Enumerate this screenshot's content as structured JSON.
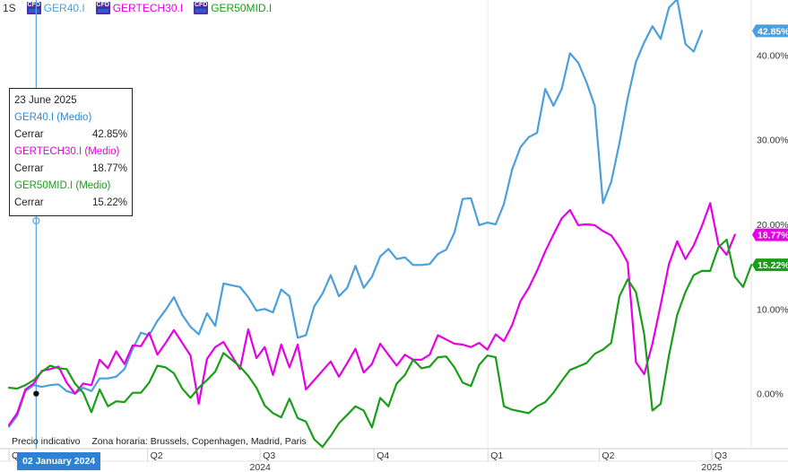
{
  "toolbar": {
    "period": "1S",
    "instruments": [
      {
        "label": "GER40.I",
        "color": "#4a9fdc",
        "icon": "cfd-icon"
      },
      {
        "label": "GERTECH30.I",
        "color": "#e600e6",
        "icon": "cfd-icon"
      },
      {
        "label": "GER50MID.I",
        "color": "#1a9e1a",
        "icon": "cfd-icon"
      }
    ]
  },
  "tooltip": {
    "date": "23 June 2025",
    "entries": [
      {
        "name": "GER40.I (Medio)",
        "field": "Cerrar",
        "value": "42.85%",
        "color": "#2d8ad6"
      },
      {
        "name": "GERTECH30.I (Medio)",
        "field": "Cerrar",
        "value": "18.77%",
        "color": "#e600e6"
      },
      {
        "name": "GER50MID.I (Medio)",
        "field": "Cerrar",
        "value": "15.22%",
        "color": "#1a9e1a"
      }
    ]
  },
  "footer": {
    "indicative": "Precio indicativo",
    "timezone": "Zona horaria: Brussels, Copenhagen, Madrid, Paris"
  },
  "crosshair": {
    "date_label": "02 January 2024"
  },
  "chart_data": {
    "type": "line",
    "x_unit": "weekly",
    "x_start": "2023-12-11",
    "x_end": "2025-06-23",
    "ylim": [
      -6.5,
      46.5
    ],
    "y_ticks": [
      0,
      10,
      20,
      30,
      40
    ],
    "y_tick_labels": [
      "0.00%",
      "10.00%",
      "20.00%",
      "30.00%",
      "40.00%"
    ],
    "x_tick_labels": [
      "Q4",
      "Q2",
      "Q3",
      "Q4",
      "Q1",
      "Q2",
      "Q3"
    ],
    "x_tick_dates": [
      "2023-12-11",
      "2024-04-01",
      "2024-07-01",
      "2024-10-01",
      "2025-01-01",
      "2025-04-01",
      "2025-07-01"
    ],
    "year_labels": [
      {
        "label": "2024",
        "date": "2024-07-01"
      },
      {
        "label": "2025",
        "date": "2025-07-01"
      }
    ],
    "grid": false,
    "last_value_labels": [
      "42.85%",
      "18.77%",
      "15.22%"
    ],
    "series": [
      {
        "name": "GER40.I",
        "color": "#4a9fdc",
        "values": [
          -3.9,
          -2.6,
          0.3,
          1.0,
          0.8,
          1.0,
          1.1,
          0.3,
          0.0,
          0.7,
          0.3,
          1.8,
          1.8,
          2.0,
          2.9,
          5.3,
          7.2,
          6.9,
          8.6,
          9.9,
          11.4,
          9.3,
          7.9,
          7.0,
          9.5,
          8.0,
          13.0,
          12.8,
          12.6,
          11.4,
          9.8,
          10.0,
          9.6,
          12.3,
          11.5,
          6.6,
          6.9,
          10.3,
          11.8,
          14.0,
          11.5,
          12.5,
          15.1,
          12.5,
          13.8,
          16.2,
          17.1,
          15.9,
          16.1,
          15.2,
          15.2,
          15.3,
          16.5,
          17.0,
          19.0,
          23.0,
          23.1,
          19.9,
          20.2,
          20.0,
          22.4,
          26.5,
          29.1,
          30.3,
          30.8,
          36.0,
          34.0,
          36.0,
          40.2,
          39.1,
          36.8,
          34.0,
          22.5,
          25.0,
          29.6,
          34.9,
          39.2,
          41.5,
          43.4,
          41.9,
          45.6,
          46.6,
          41.3,
          40.4,
          42.85
        ]
      },
      {
        "name": "GERTECH30.I",
        "color": "#e600e6",
        "values": [
          -3.7,
          -2.3,
          0.5,
          1.2,
          2.7,
          2.9,
          3.2,
          1.3,
          0.0,
          1.2,
          1.0,
          4.0,
          3.0,
          5.0,
          3.5,
          5.7,
          5.6,
          7.2,
          4.6,
          6.0,
          7.5,
          6.0,
          4.5,
          -1.2,
          4.1,
          5.5,
          6.1,
          4.5,
          2.9,
          7.6,
          4.2,
          5.5,
          2.2,
          5.8,
          3.1,
          5.8,
          0.5,
          1.6,
          2.7,
          3.8,
          2.0,
          3.6,
          5.3,
          2.5,
          3.5,
          5.9,
          4.6,
          3.3,
          4.6,
          4.0,
          4.0,
          4.6,
          6.9,
          6.4,
          5.9,
          5.8,
          5.5,
          6.0,
          5.2,
          7.0,
          6.2,
          8.1,
          10.9,
          12.5,
          14.5,
          16.8,
          18.8,
          20.7,
          21.7,
          19.9,
          20.0,
          19.9,
          19.2,
          18.7,
          17.3,
          15.5,
          3.7,
          2.3,
          5.9,
          10.5,
          15.3,
          18.0,
          15.9,
          17.5,
          19.8,
          22.5,
          17.6,
          16.4,
          18.77
        ]
      },
      {
        "name": "GER50MID.I",
        "color": "#1a9e1a",
        "values": [
          0.7,
          0.6,
          1.0,
          1.6,
          2.6,
          3.3,
          3.0,
          2.9,
          1.2,
          0.1,
          -2.2,
          0.5,
          -1.5,
          -0.9,
          -1.0,
          0.1,
          0.1,
          1.3,
          3.3,
          3.1,
          2.4,
          0.6,
          -0.5,
          0.7,
          1.6,
          2.6,
          4.8,
          4.0,
          3.2,
          2.1,
          0.7,
          -1.4,
          -2.3,
          -2.8,
          -0.6,
          -2.9,
          -3.3,
          -5.4,
          -6.3,
          -5.0,
          -3.5,
          -2.5,
          -1.5,
          -2.0,
          -4.0,
          -0.5,
          -1.5,
          1.2,
          2.2,
          4.0,
          3.0,
          3.2,
          4.3,
          4.4,
          3.1,
          1.3,
          0.9,
          3.4,
          4.5,
          4.3,
          -1.5,
          -1.9,
          -2.1,
          -2.3,
          -1.5,
          -1.0,
          0.1,
          1.5,
          2.8,
          3.2,
          3.6,
          4.7,
          5.2,
          6.0,
          11.5,
          13.5,
          12.0,
          7.0,
          -2.0,
          -1.2,
          4.5,
          9.3,
          12.0,
          14.0,
          14.5,
          14.5,
          17.3,
          18.2,
          13.8,
          12.6,
          15.22
        ]
      }
    ]
  }
}
